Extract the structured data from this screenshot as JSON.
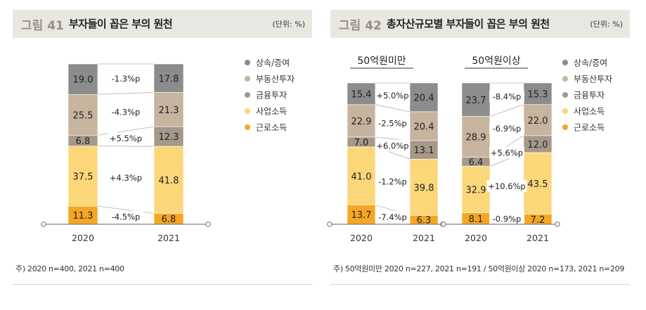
{
  "colors": {
    "상속/증여": "#8c8c8c",
    "부동산투자": "#c6b49f",
    "금융투자": "#a6988a",
    "사업소득": "#fcd77a",
    "근로소득": "#f5a623"
  },
  "panel41": {
    "fig_num": "그림 41",
    "title": "부자들이 꼽은 부의 원천",
    "unit": "(단위: %)",
    "note": "주) 2020 n=400, 2021 n=400"
  },
  "panel42": {
    "fig_num": "그림 42",
    "title": "총자산규모별 부자들이 꼽은 부의 원천",
    "unit": "(단위: %)",
    "note": "주) 50억원미만 2020 n=227, 2021 n=191 / 50억원이상 2020 n=173, 2021 n=209"
  },
  "chart_data": [
    {
      "type": "bar",
      "stacked": true,
      "categories": [
        "2020",
        "2021"
      ],
      "series": [
        {
          "name": "상속/증여",
          "values": [
            19.0,
            17.8
          ]
        },
        {
          "name": "부동산투자",
          "values": [
            25.5,
            21.3
          ]
        },
        {
          "name": "금융투자",
          "values": [
            6.8,
            12.3
          ]
        },
        {
          "name": "사업소득",
          "values": [
            37.5,
            41.8
          ]
        },
        {
          "name": "근로소득",
          "values": [
            11.3,
            6.8
          ]
        }
      ],
      "value_labels": [
        [
          "19.0",
          "25.5",
          "6.8",
          "37.5",
          "11.3"
        ],
        [
          "17.8",
          "21.3",
          "12.3",
          "41.8",
          "6.8"
        ]
      ],
      "change_labels": [
        "-1.3%p",
        "-4.3%p",
        "+5.5%p",
        "+4.3%p",
        "-4.5%p"
      ],
      "legend": [
        "상속/증여",
        "부동산투자",
        "금융투자",
        "사업소득",
        "근로소득"
      ]
    },
    {
      "type": "bar",
      "stacked": true,
      "title": "50억원미만",
      "categories": [
        "2020",
        "2021"
      ],
      "series": [
        {
          "name": "상속/증여",
          "values": [
            15.4,
            20.4
          ]
        },
        {
          "name": "부동산투자",
          "values": [
            22.9,
            20.4
          ]
        },
        {
          "name": "금융투자",
          "values": [
            7.0,
            13.1
          ]
        },
        {
          "name": "사업소득",
          "values": [
            41.0,
            39.8
          ]
        },
        {
          "name": "근로소득",
          "values": [
            13.7,
            6.3
          ]
        }
      ],
      "value_labels": [
        [
          "15.4",
          "22.9",
          "7.0",
          "41.0",
          "13.7"
        ],
        [
          "20.4",
          "20.4",
          "13.1",
          "39.8",
          "6.3"
        ]
      ],
      "change_labels": [
        "+5.0%p",
        "-2.5%p",
        "+6.0%p",
        "-1.2%p",
        "-7.4%p"
      ]
    },
    {
      "type": "bar",
      "stacked": true,
      "title": "50억원이상",
      "categories": [
        "2020",
        "2021"
      ],
      "series": [
        {
          "name": "상속/증여",
          "values": [
            23.7,
            15.3
          ]
        },
        {
          "name": "부동산투자",
          "values": [
            28.9,
            22.0
          ]
        },
        {
          "name": "금융투자",
          "values": [
            6.4,
            12.0
          ]
        },
        {
          "name": "사업소득",
          "values": [
            32.9,
            43.5
          ]
        },
        {
          "name": "근로소득",
          "values": [
            8.1,
            7.2
          ]
        }
      ],
      "value_labels": [
        [
          "23.7",
          "28.9",
          "6.4",
          "32.9",
          "8.1"
        ],
        [
          "15.3",
          "22.0",
          "12.0",
          "43.5",
          "7.2"
        ]
      ],
      "change_labels": [
        "-8.4%p",
        "-6.9%p",
        "+5.6%p",
        "+10.6%p",
        "-0.9%p"
      ],
      "legend": [
        "상속/증여",
        "부동산투자",
        "금융투자",
        "사업소득",
        "근로소득"
      ]
    }
  ]
}
